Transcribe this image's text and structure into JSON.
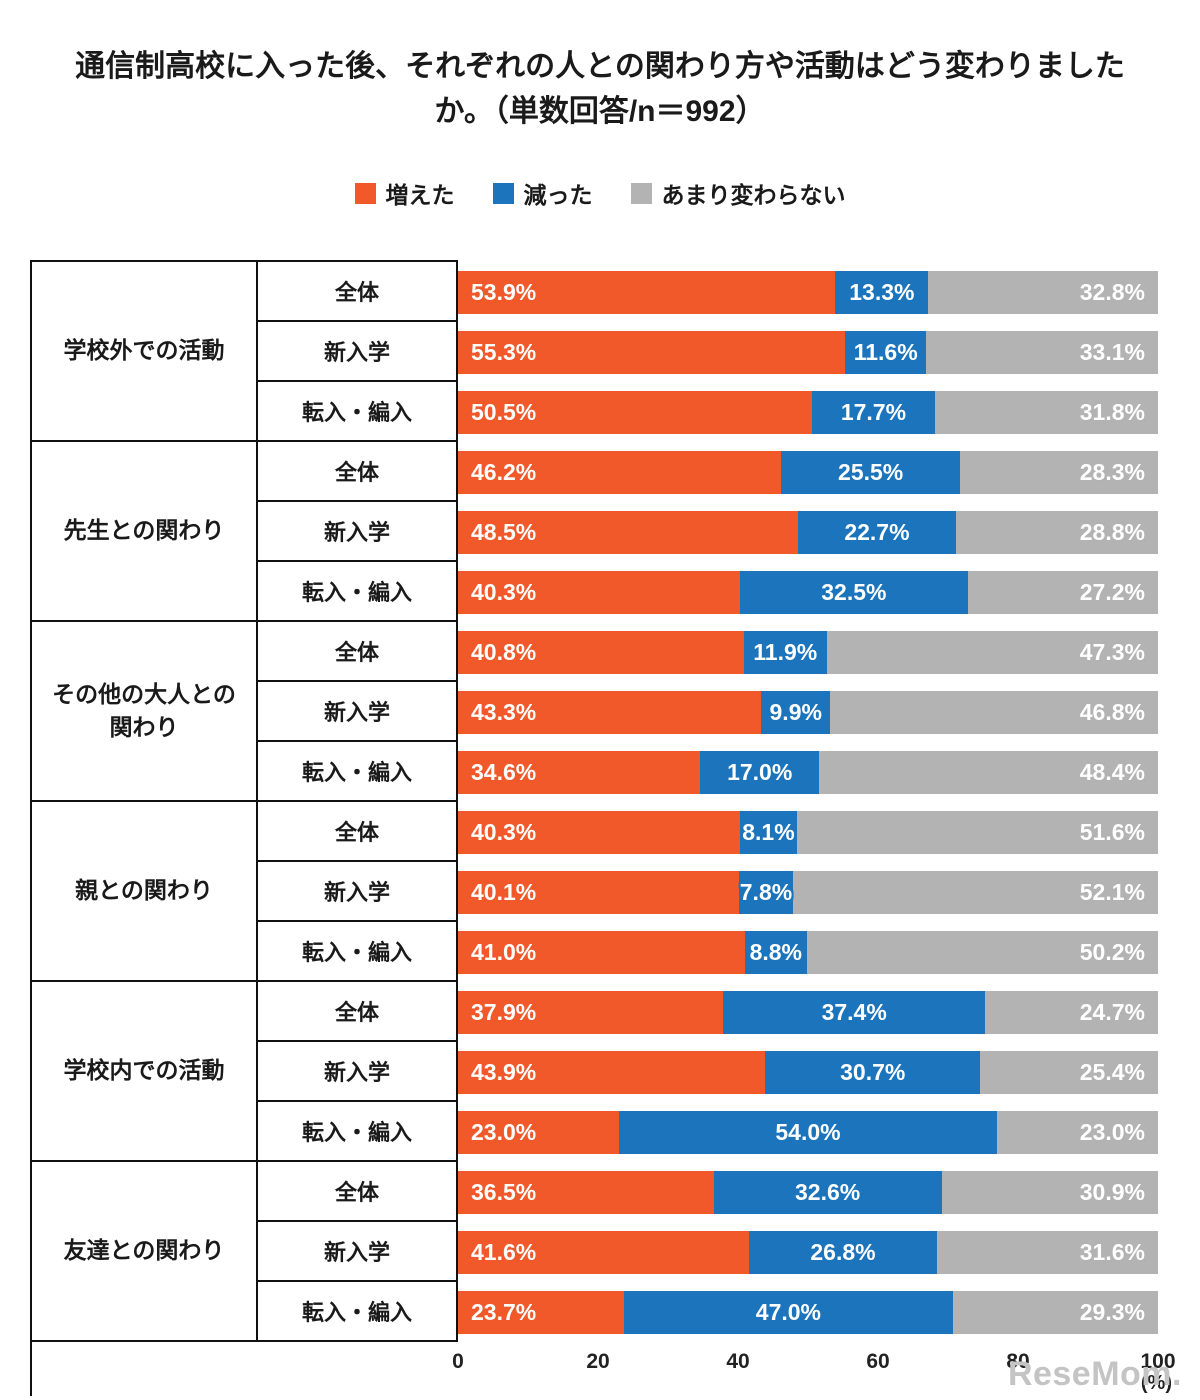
{
  "title": "通信制高校に入った後、それぞれの人との関わり方や活動はどう変わりましたか。（単数回答/n＝992）",
  "legend": [
    {
      "label": "増えた",
      "color": "#F1592A",
      "key": "increased"
    },
    {
      "label": "減った",
      "color": "#1C75BC",
      "key": "decreased"
    },
    {
      "label": "あまり変わらない",
      "color": "#B3B3B3",
      "key": "unchanged"
    }
  ],
  "chart_data": {
    "type": "bar",
    "orientation": "horizontal",
    "stacked": true,
    "x_ticks": [
      0,
      20,
      40,
      60,
      80,
      100
    ],
    "x_unit": "(%)",
    "xlim": [
      0,
      100
    ],
    "series_names": [
      "増えた",
      "減った",
      "あまり変わらない"
    ],
    "groups": [
      {
        "label": "学校外での活動",
        "rows": [
          {
            "label": "全体",
            "values": [
              53.9,
              13.3,
              32.8
            ]
          },
          {
            "label": "新入学",
            "values": [
              55.3,
              11.6,
              33.1
            ]
          },
          {
            "label": "転入・編入",
            "values": [
              50.5,
              17.7,
              31.8
            ]
          }
        ]
      },
      {
        "label": "先生との関わり",
        "rows": [
          {
            "label": "全体",
            "values": [
              46.2,
              25.5,
              28.3
            ]
          },
          {
            "label": "新入学",
            "values": [
              48.5,
              22.7,
              28.8
            ]
          },
          {
            "label": "転入・編入",
            "values": [
              40.3,
              32.5,
              27.2
            ]
          }
        ]
      },
      {
        "label": "その他の大人との関わり",
        "rows": [
          {
            "label": "全体",
            "values": [
              40.8,
              11.9,
              47.3
            ]
          },
          {
            "label": "新入学",
            "values": [
              43.3,
              9.9,
              46.8
            ]
          },
          {
            "label": "転入・編入",
            "values": [
              34.6,
              17.0,
              48.4
            ]
          }
        ]
      },
      {
        "label": "親との関わり",
        "rows": [
          {
            "label": "全体",
            "values": [
              40.3,
              8.1,
              51.6
            ]
          },
          {
            "label": "新入学",
            "values": [
              40.1,
              7.8,
              52.1
            ]
          },
          {
            "label": "転入・編入",
            "values": [
              41.0,
              8.8,
              50.2
            ]
          }
        ]
      },
      {
        "label": "学校内での活動",
        "rows": [
          {
            "label": "全体",
            "values": [
              37.9,
              37.4,
              24.7
            ]
          },
          {
            "label": "新入学",
            "values": [
              43.9,
              30.7,
              25.4
            ]
          },
          {
            "label": "転入・編入",
            "values": [
              23.0,
              54.0,
              23.0
            ]
          }
        ]
      },
      {
        "label": "友達との関わり",
        "rows": [
          {
            "label": "全体",
            "values": [
              36.5,
              32.6,
              30.9
            ]
          },
          {
            "label": "新入学",
            "values": [
              41.6,
              26.8,
              31.6
            ]
          },
          {
            "label": "転入・編入",
            "values": [
              23.7,
              47.0,
              29.3
            ]
          }
        ]
      }
    ]
  },
  "watermark": "ReseMom."
}
